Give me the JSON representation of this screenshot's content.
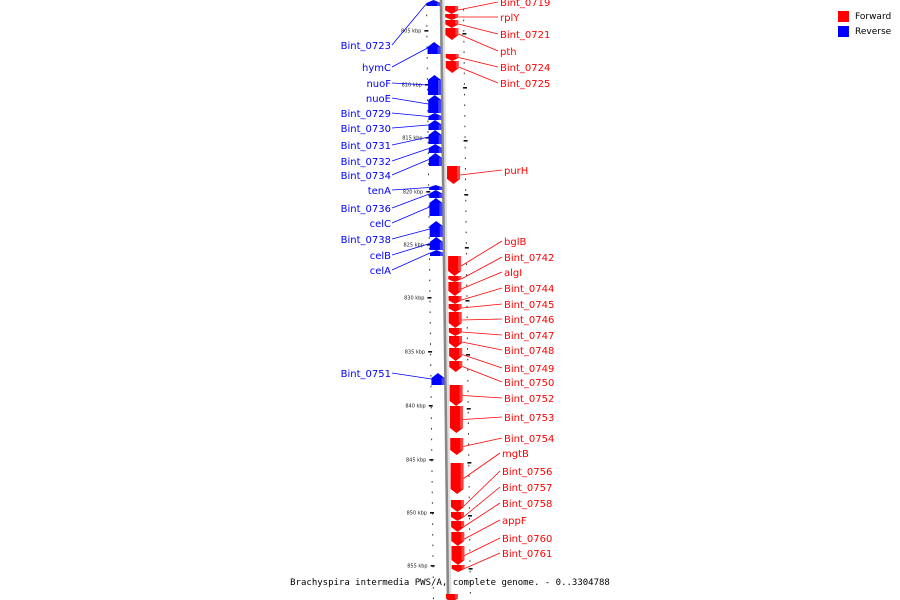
{
  "caption": "Brachyspira intermedia PWS/A, complete genome. - 0..3304788",
  "legend": [
    {
      "label": "Forward",
      "color": "#ff0000"
    },
    {
      "label": "Reverse",
      "color": "#0000ff"
    }
  ],
  "colors": {
    "forward": "#ff0000",
    "reverse": "#0000ff",
    "backbone": "#888888"
  },
  "ticks": [
    "805 kbp",
    "810 kbp",
    "815 kbp",
    "820 kbp",
    "825 kbp",
    "830 kbp",
    "835 kbp",
    "840 kbp",
    "845 kbp",
    "850 kbp",
    "855 kbp"
  ],
  "reverse_genes": [
    "Bint_0723",
    "hymC",
    "nuoF",
    "nuoE",
    "Bint_0729",
    "Bint_0730",
    "Bint_0731",
    "Bint_0732",
    "Bint_0734",
    "tenA",
    "Bint_0736",
    "celC",
    "Bint_0738",
    "celB",
    "celA",
    "Bint_0751"
  ],
  "forward_genes": [
    "Bint_0719",
    "rplY",
    "Bint_0721",
    "pth",
    "Bint_0724",
    "Bint_0725",
    "purH",
    "bglB",
    "Bint_0742",
    "algI",
    "Bint_0744",
    "Bint_0745",
    "Bint_0746",
    "Bint_0747",
    "Bint_0748",
    "Bint_0749",
    "Bint_0750",
    "Bint_0752",
    "Bint_0753",
    "Bint_0754",
    "mgtB",
    "Bint_0756",
    "Bint_0757",
    "Bint_0758",
    "appF",
    "Bint_0760",
    "Bint_0761"
  ]
}
